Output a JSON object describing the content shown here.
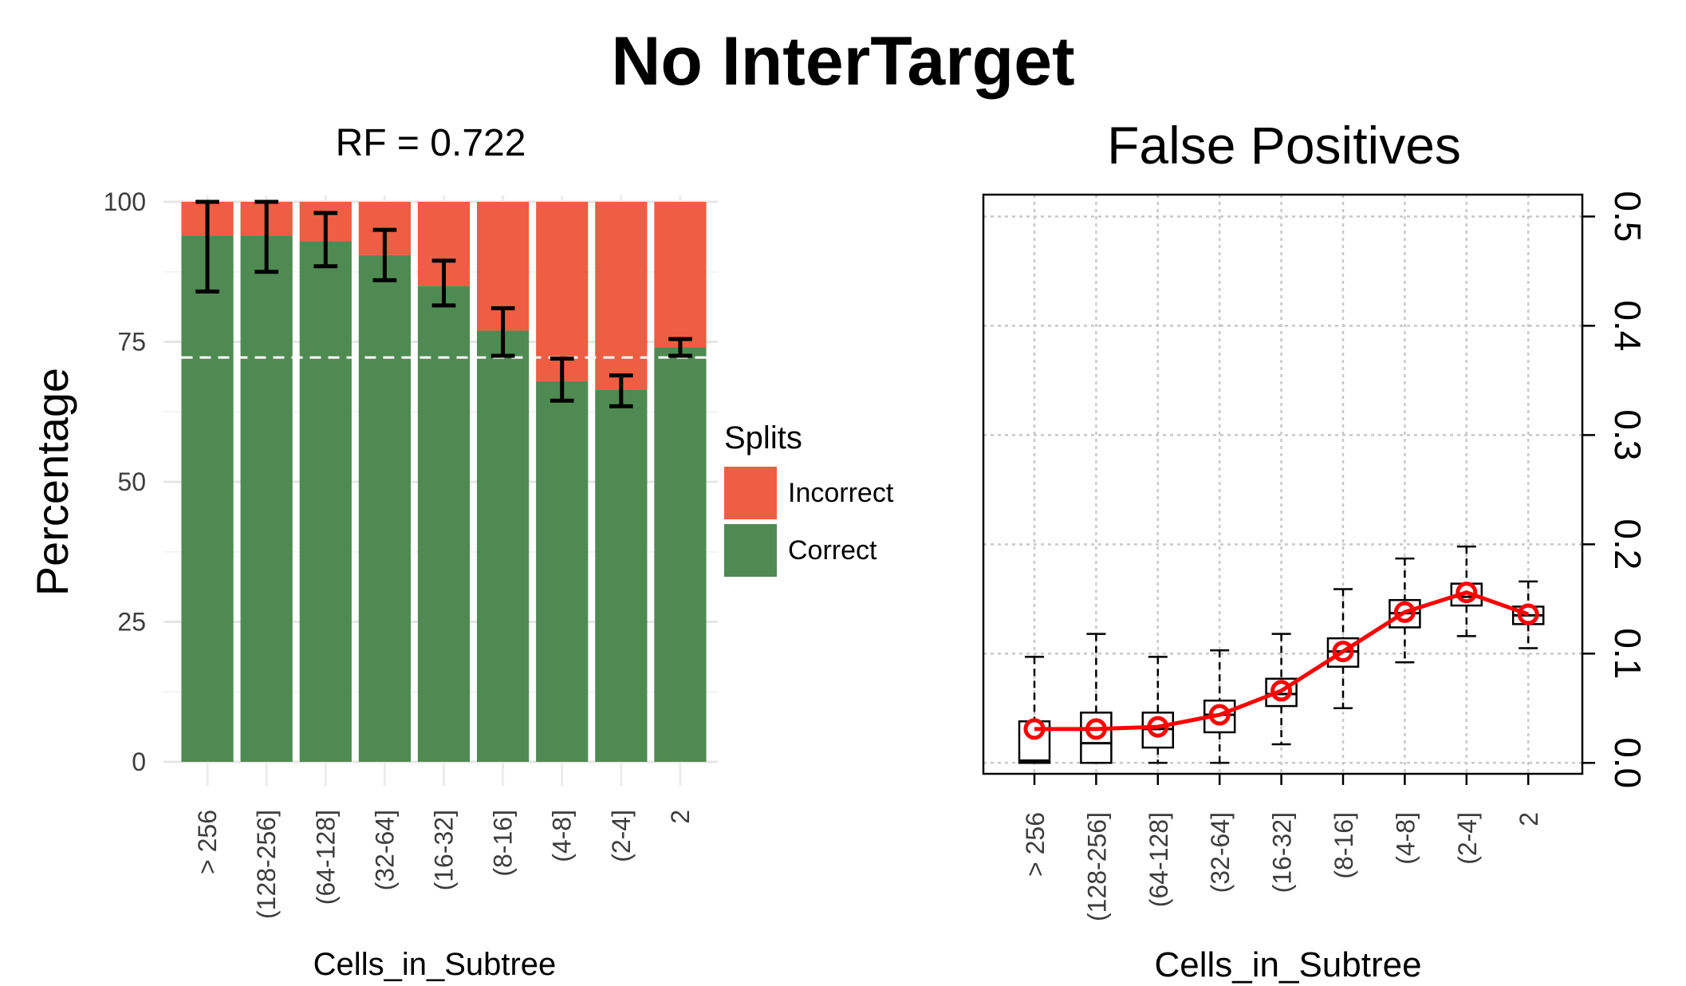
{
  "title": "No InterTarget",
  "categories": [
    "> 256",
    "(128-256]",
    "(64-128]",
    "(32-64]",
    "(16-32]",
    "(8-16]",
    "(4-8]",
    "(2-4]",
    "2"
  ],
  "chart_data": [
    {
      "type": "bar",
      "stacked": true,
      "title": "RF =  0.722",
      "xlabel": "Cells_in_Subtree",
      "ylabel": "Percentage",
      "ylim": [
        0,
        100
      ],
      "yticks": [
        0,
        25,
        50,
        75,
        100
      ],
      "legend": {
        "title": "Splits",
        "position": "right",
        "entries": [
          "Incorrect",
          "Correct"
        ]
      },
      "reference_line": 72.2,
      "series": [
        {
          "name": "Correct",
          "color": "#4f8a53",
          "values": [
            94,
            94,
            93,
            90.5,
            85,
            77,
            68,
            66.5,
            74
          ]
        },
        {
          "name": "Incorrect",
          "color": "#ee5e42",
          "values": [
            6,
            6,
            7,
            9.5,
            15,
            23,
            32,
            33.5,
            26
          ]
        }
      ],
      "error_bars": {
        "low": [
          84,
          87.5,
          88.5,
          86,
          81.5,
          72.5,
          64.5,
          63.5,
          72.5
        ],
        "high": [
          100,
          100,
          98,
          95,
          89.5,
          81,
          72,
          69,
          75.5
        ]
      }
    },
    {
      "type": "box",
      "title": "False Positives",
      "xlabel": "Cells_in_Subtree",
      "ylabel": "",
      "ylim": [
        -0.01,
        0.52
      ],
      "yticks": [
        "0.0",
        "0.1",
        "0.2",
        "0.3",
        "0.4",
        "0.5"
      ],
      "grid": true,
      "boxes": [
        {
          "whisker_low": 0.0,
          "q1": 0.0,
          "median": 0.002,
          "q3": 0.038,
          "whisker_high": 0.097
        },
        {
          "whisker_low": 0.0,
          "q1": 0.0,
          "median": 0.018,
          "q3": 0.046,
          "whisker_high": 0.118
        },
        {
          "whisker_low": 0.0,
          "q1": 0.014,
          "median": 0.031,
          "q3": 0.046,
          "whisker_high": 0.097
        },
        {
          "whisker_low": 0.0,
          "q1": 0.028,
          "median": 0.044,
          "q3": 0.057,
          "whisker_high": 0.103
        },
        {
          "whisker_low": 0.017,
          "q1": 0.052,
          "median": 0.063,
          "q3": 0.077,
          "whisker_high": 0.118
        },
        {
          "whisker_low": 0.05,
          "q1": 0.088,
          "median": 0.102,
          "q3": 0.114,
          "whisker_high": 0.159
        },
        {
          "whisker_low": 0.092,
          "q1": 0.124,
          "median": 0.137,
          "q3": 0.149,
          "whisker_high": 0.187
        },
        {
          "whisker_low": 0.116,
          "q1": 0.144,
          "median": 0.152,
          "q3": 0.164,
          "whisker_high": 0.198
        },
        {
          "whisker_low": 0.105,
          "q1": 0.127,
          "median": 0.135,
          "q3": 0.143,
          "whisker_high": 0.166
        }
      ],
      "mean_line": {
        "color": "#ff0000",
        "values": [
          0.031,
          0.031,
          0.033,
          0.044,
          0.066,
          0.102,
          0.138,
          0.156,
          0.136
        ]
      }
    }
  ]
}
